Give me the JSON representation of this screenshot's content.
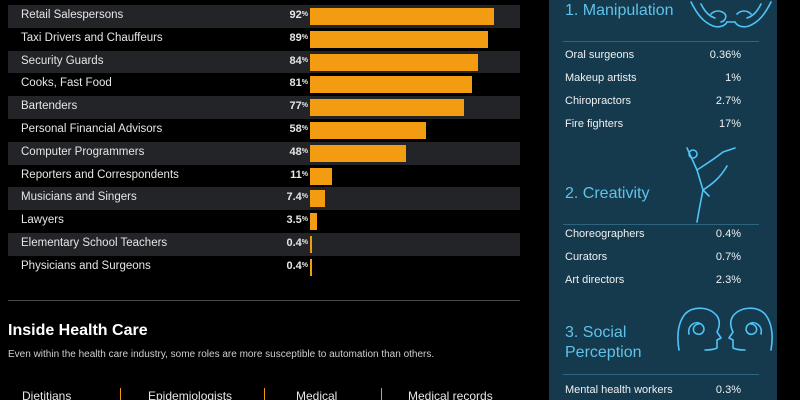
{
  "chart_data": {
    "type": "bar",
    "orientation": "horizontal",
    "categories": [
      "Retail Salespersons",
      "Taxi Drivers and Chauffeurs",
      "Security Guards",
      "Cooks, Fast Food",
      "Bartenders",
      "Personal Financial Advisors",
      "Computer Programmers",
      "Reporters and Correspondents",
      "Musicians and Singers",
      "Lawyers",
      "Elementary School Teachers",
      "Physicians and Surgeons"
    ],
    "values": [
      92,
      89,
      84,
      81,
      77,
      58,
      48,
      11,
      7.4,
      3.5,
      0.4,
      0.4
    ],
    "value_labels": [
      "92",
      "89",
      "84",
      "81",
      "77",
      "58",
      "48",
      "11",
      "7.4",
      "3.5",
      "0.4",
      "0.4"
    ],
    "unit": "%",
    "xlim": [
      0,
      100
    ],
    "bar_color": "#f39c12"
  },
  "health_care": {
    "title": "Inside Health Care",
    "description": "Even within the health care industry, some roles are more susceptible to automation than others.",
    "items": [
      "Dietitians",
      "Epidemiologists",
      "Medical",
      "Medical records"
    ]
  },
  "skills": [
    {
      "title_lines": [
        "1. Manipulation"
      ],
      "icon": "hands-icon",
      "occupations": [
        {
          "name": "Oral surgeons",
          "value": "0.36%"
        },
        {
          "name": "Makeup artists",
          "value": "1%"
        },
        {
          "name": "Chiropractors",
          "value": "2.7%"
        },
        {
          "name": "Fire fighters",
          "value": "17%"
        }
      ]
    },
    {
      "title_lines": [
        "2. Creativity"
      ],
      "icon": "dancer-icon",
      "occupations": [
        {
          "name": "Choreographers",
          "value": "0.4%"
        },
        {
          "name": "Curators",
          "value": "0.7%"
        },
        {
          "name": "Art directors",
          "value": "2.3%"
        }
      ]
    },
    {
      "title_lines": [
        "3. Social",
        "Perception"
      ],
      "icon": "heads-icon",
      "occupations": [
        {
          "name": "Mental health workers",
          "value": "0.3%"
        }
      ]
    }
  ],
  "colors": {
    "accent": "#f39c12",
    "panel": "#153a4e",
    "panel_text_accent": "#5fc2e8"
  }
}
